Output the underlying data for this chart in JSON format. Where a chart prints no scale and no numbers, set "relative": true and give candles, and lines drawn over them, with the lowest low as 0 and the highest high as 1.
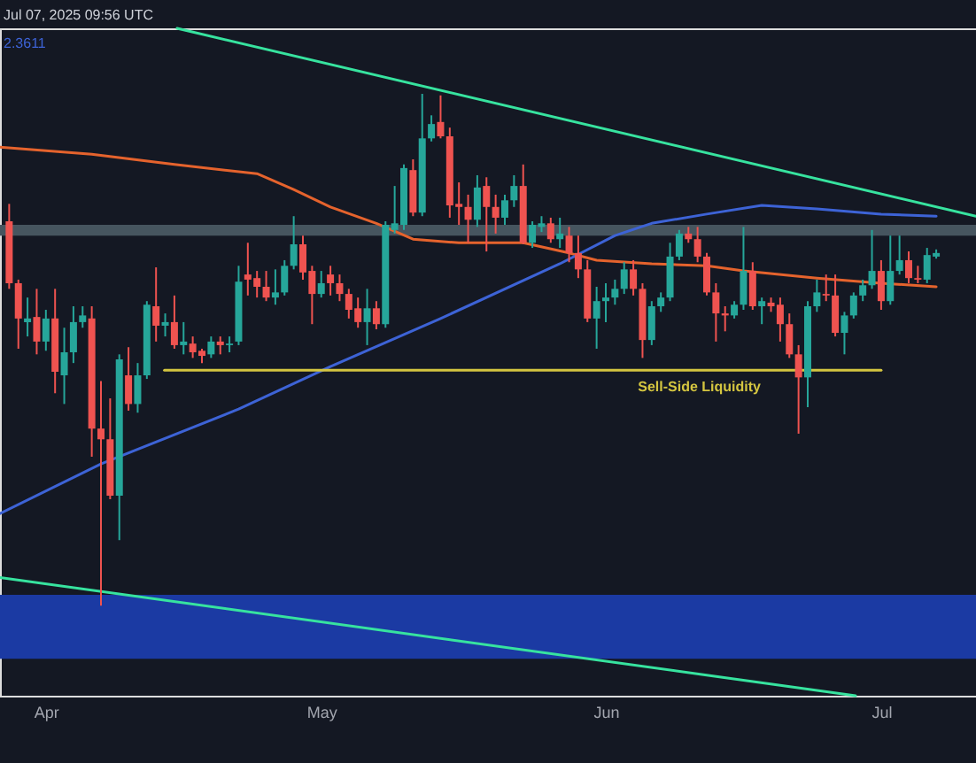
{
  "chart_data": {
    "type": "candlestick",
    "relative": true,
    "legend": "top left",
    "annotations": [
      "Jul 07, 2025 09:56 UTC",
      {
        "text": "Sell-Side Liquidity",
        "x": "2025-06-04T12:00",
        "y": 0.46
      }
    ],
    "xlim": [
      "2025-03-27",
      "2025-07-11T08:00"
    ],
    "xticks": [
      {
        "value": "2025-04-01",
        "label": "Apr"
      },
      {
        "value": "2025-05-01",
        "label": "May"
      },
      {
        "value": "2025-06-01",
        "label": "Jun"
      },
      {
        "value": "2025-07-01",
        "label": "Jul"
      }
    ],
    "bands": [
      {
        "axis": "y",
        "from": 0.723,
        "to": 0.744,
        "color": "#46555f"
      },
      {
        "axis": "y",
        "from": -0.104,
        "to": 0.021,
        "color": "#1b3aa3"
      }
    ],
    "x": [
      "2025-03-28",
      "2025-03-29",
      "2025-03-30",
      "2025-03-31",
      "2025-04-01",
      "2025-04-02",
      "2025-04-03",
      "2025-04-04",
      "2025-04-05",
      "2025-04-06",
      "2025-04-07",
      "2025-04-08",
      "2025-04-09",
      "2025-04-10",
      "2025-04-11",
      "2025-04-12",
      "2025-04-13",
      "2025-04-14",
      "2025-04-15",
      "2025-04-16",
      "2025-04-17",
      "2025-04-18",
      "2025-04-19",
      "2025-04-20",
      "2025-04-21",
      "2025-04-22",
      "2025-04-23",
      "2025-04-24",
      "2025-04-25",
      "2025-04-26",
      "2025-04-27",
      "2025-04-28",
      "2025-04-29",
      "2025-04-30",
      "2025-05-01",
      "2025-05-02",
      "2025-05-03",
      "2025-05-04",
      "2025-05-05",
      "2025-05-06",
      "2025-05-07",
      "2025-05-08",
      "2025-05-09",
      "2025-05-10",
      "2025-05-11",
      "2025-05-12",
      "2025-05-13",
      "2025-05-14",
      "2025-05-15",
      "2025-05-16",
      "2025-05-17",
      "2025-05-18",
      "2025-05-19",
      "2025-05-20",
      "2025-05-21",
      "2025-05-22",
      "2025-05-23",
      "2025-05-24",
      "2025-05-25",
      "2025-05-26",
      "2025-05-27",
      "2025-05-28",
      "2025-05-29",
      "2025-05-30",
      "2025-05-31",
      "2025-06-01",
      "2025-06-02",
      "2025-06-03",
      "2025-06-04",
      "2025-06-05",
      "2025-06-06",
      "2025-06-07",
      "2025-06-08",
      "2025-06-09",
      "2025-06-10",
      "2025-06-11",
      "2025-06-12",
      "2025-06-13",
      "2025-06-14",
      "2025-06-15",
      "2025-06-16",
      "2025-06-17",
      "2025-06-18",
      "2025-06-19",
      "2025-06-20",
      "2025-06-21",
      "2025-06-22",
      "2025-06-23",
      "2025-06-24",
      "2025-06-25",
      "2025-06-26",
      "2025-06-27",
      "2025-06-28",
      "2025-06-29",
      "2025-06-30",
      "2025-07-01",
      "2025-07-02",
      "2025-07-03",
      "2025-07-04",
      "2025-07-05",
      "2025-07-06",
      "2025-07-07"
    ],
    "ohlc": [
      [
        0.751,
        0.785,
        0.619,
        0.63
      ],
      [
        0.63,
        0.637,
        0.502,
        0.561
      ],
      [
        0.554,
        0.602,
        0.526,
        0.561
      ],
      [
        0.564,
        0.619,
        0.491,
        0.516
      ],
      [
        0.516,
        0.578,
        0.498,
        0.561
      ],
      [
        0.561,
        0.619,
        0.415,
        0.457
      ],
      [
        0.45,
        0.543,
        0.394,
        0.495
      ],
      [
        0.495,
        0.585,
        0.474,
        0.554
      ],
      [
        0.554,
        0.585,
        0.543,
        0.567
      ],
      [
        0.561,
        0.585,
        0.291,
        0.346
      ],
      [
        0.346,
        0.439,
        0,
        0.325
      ],
      [
        0.325,
        0.405,
        0.208,
        0.215
      ],
      [
        0.215,
        0.491,
        0.128,
        0.481
      ],
      [
        0.45,
        0.505,
        0.381,
        0.394
      ],
      [
        0.394,
        0.474,
        0.377,
        0.45
      ],
      [
        0.45,
        0.595,
        0.443,
        0.588
      ],
      [
        0.585,
        0.661,
        0.516,
        0.547
      ],
      [
        0.547,
        0.571,
        0.526,
        0.554
      ],
      [
        0.554,
        0.606,
        0.502,
        0.509
      ],
      [
        0.509,
        0.554,
        0.491,
        0.516
      ],
      [
        0.512,
        0.526,
        0.484,
        0.495
      ],
      [
        0.498,
        0.502,
        0.474,
        0.488
      ],
      [
        0.491,
        0.526,
        0.484,
        0.516
      ],
      [
        0.516,
        0.526,
        0.491,
        0.509
      ],
      [
        0.509,
        0.526,
        0.495,
        0.512
      ],
      [
        0.516,
        0.664,
        0.509,
        0.633
      ],
      [
        0.647,
        0.709,
        0.606,
        0.637
      ],
      [
        0.64,
        0.654,
        0.602,
        0.623
      ],
      [
        0.623,
        0.654,
        0.595,
        0.602
      ],
      [
        0.602,
        0.657,
        0.588,
        0.612
      ],
      [
        0.612,
        0.675,
        0.606,
        0.664
      ],
      [
        0.664,
        0.761,
        0.657,
        0.706
      ],
      [
        0.706,
        0.723,
        0.637,
        0.651
      ],
      [
        0.654,
        0.664,
        0.55,
        0.609
      ],
      [
        0.609,
        0.654,
        0.602,
        0.63
      ],
      [
        0.647,
        0.664,
        0.606,
        0.63
      ],
      [
        0.63,
        0.647,
        0.595,
        0.609
      ],
      [
        0.609,
        0.619,
        0.561,
        0.578
      ],
      [
        0.581,
        0.602,
        0.543,
        0.554
      ],
      [
        0.554,
        0.619,
        0.509,
        0.581
      ],
      [
        0.581,
        0.595,
        0.54,
        0.55
      ],
      [
        0.55,
        0.751,
        0.543,
        0.744
      ],
      [
        0.734,
        0.82,
        0.727,
        0.747
      ],
      [
        0.744,
        0.862,
        0.734,
        0.855
      ],
      [
        0.851,
        0.872,
        0.761,
        0.768
      ],
      [
        0.768,
        1,
        0.761,
        0.913
      ],
      [
        0.913,
        0.958,
        0.907,
        0.941
      ],
      [
        0.945,
        0.997,
        0.913,
        0.917
      ],
      [
        0.917,
        0.934,
        0.758,
        0.782
      ],
      [
        0.785,
        0.827,
        0.744,
        0.779
      ],
      [
        0.779,
        0.803,
        0.709,
        0.754
      ],
      [
        0.754,
        0.841,
        0.74,
        0.817
      ],
      [
        0.82,
        0.837,
        0.692,
        0.779
      ],
      [
        0.779,
        0.803,
        0.727,
        0.758
      ],
      [
        0.758,
        0.803,
        0.744,
        0.792
      ],
      [
        0.792,
        0.841,
        0.779,
        0.82
      ],
      [
        0.82,
        0.862,
        0.706,
        0.709
      ],
      [
        0.709,
        0.751,
        0.699,
        0.744
      ],
      [
        0.74,
        0.761,
        0.73,
        0.747
      ],
      [
        0.747,
        0.758,
        0.709,
        0.716
      ],
      [
        0.716,
        0.758,
        0.699,
        0.727
      ],
      [
        0.723,
        0.74,
        0.671,
        0.689
      ],
      [
        0.689,
        0.723,
        0.64,
        0.657
      ],
      [
        0.657,
        0.675,
        0.554,
        0.561
      ],
      [
        0.561,
        0.623,
        0.502,
        0.595
      ],
      [
        0.595,
        0.63,
        0.554,
        0.602
      ],
      [
        0.602,
        0.637,
        0.588,
        0.619
      ],
      [
        0.619,
        0.671,
        0.609,
        0.657
      ],
      [
        0.657,
        0.675,
        0.606,
        0.619
      ],
      [
        0.619,
        0.63,
        0.484,
        0.519
      ],
      [
        0.519,
        0.595,
        0.509,
        0.585
      ],
      [
        0.585,
        0.612,
        0.574,
        0.602
      ],
      [
        0.602,
        0.709,
        0.595,
        0.682
      ],
      [
        0.682,
        0.734,
        0.675,
        0.727
      ],
      [
        0.727,
        0.74,
        0.709,
        0.716
      ],
      [
        0.716,
        0.74,
        0.671,
        0.682
      ],
      [
        0.682,
        0.689,
        0.606,
        0.612
      ],
      [
        0.612,
        0.63,
        0.516,
        0.571
      ],
      [
        0.571,
        0.585,
        0.536,
        0.567
      ],
      [
        0.567,
        0.595,
        0.561,
        0.588
      ],
      [
        0.588,
        0.74,
        0.578,
        0.654
      ],
      [
        0.654,
        0.671,
        0.578,
        0.585
      ],
      [
        0.585,
        0.602,
        0.55,
        0.595
      ],
      [
        0.592,
        0.602,
        0.574,
        0.585
      ],
      [
        0.588,
        0.602,
        0.516,
        0.55
      ],
      [
        0.55,
        0.571,
        0.484,
        0.491
      ],
      [
        0.491,
        0.509,
        0.336,
        0.446
      ],
      [
        0.446,
        0.595,
        0.388,
        0.585
      ],
      [
        0.585,
        0.637,
        0.574,
        0.612
      ],
      [
        0.609,
        0.647,
        0.595,
        0.606
      ],
      [
        0.606,
        0.647,
        0.526,
        0.533
      ],
      [
        0.533,
        0.574,
        0.491,
        0.567
      ],
      [
        0.567,
        0.612,
        0.561,
        0.606
      ],
      [
        0.606,
        0.637,
        0.595,
        0.626
      ],
      [
        0.626,
        0.734,
        0.619,
        0.654
      ],
      [
        0.654,
        0.675,
        0.578,
        0.595
      ],
      [
        0.595,
        0.723,
        0.588,
        0.654
      ],
      [
        0.654,
        0.723,
        0.647,
        0.675
      ],
      [
        0.675,
        0.692,
        0.63,
        0.64
      ],
      [
        0.64,
        0.664,
        0.63,
        0.637
      ],
      [
        0.637,
        0.699,
        0.63,
        0.685
      ],
      [
        0.682,
        0.696,
        0.678,
        0.689
      ]
    ],
    "colors": [
      "#ef5350",
      "#ef5350",
      "#26a69a",
      "#ef5350",
      "#26a69a",
      "#ef5350",
      "#26a69a",
      "#26a69a",
      "#26a69a",
      "#ef5350",
      "#ef5350",
      "#ef5350",
      "#26a69a",
      "#ef5350",
      "#26a69a",
      "#26a69a",
      "#ef5350",
      "#26a69a",
      "#ef5350",
      "#26a69a",
      "#ef5350",
      "#ef5350",
      "#26a69a",
      "#ef5350",
      "#26a69a",
      "#26a69a",
      "#ef5350",
      "#ef5350",
      "#ef5350",
      "#26a69a",
      "#26a69a",
      "#26a69a",
      "#ef5350",
      "#ef5350",
      "#26a69a",
      "#ef5350",
      "#ef5350",
      "#ef5350",
      "#ef5350",
      "#26a69a",
      "#ef5350",
      "#26a69a",
      "#26a69a",
      "#26a69a",
      "#ef5350",
      "#26a69a",
      "#26a69a",
      "#ef5350",
      "#ef5350",
      "#ef5350",
      "#ef5350",
      "#26a69a",
      "#ef5350",
      "#ef5350",
      "#26a69a",
      "#26a69a",
      "#ef5350",
      "#26a69a",
      "#26a69a",
      "#ef5350",
      "#26a69a",
      "#ef5350",
      "#ef5350",
      "#ef5350",
      "#26a69a",
      "#26a69a",
      "#26a69a",
      "#26a69a",
      "#ef5350",
      "#ef5350",
      "#26a69a",
      "#26a69a",
      "#26a69a",
      "#26a69a",
      "#ef5350",
      "#ef5350",
      "#ef5350",
      "#ef5350",
      "#ef5350",
      "#26a69a",
      "#26a69a",
      "#ef5350",
      "#26a69a",
      "#ef5350",
      "#ef5350",
      "#ef5350",
      "#ef5350",
      "#26a69a",
      "#26a69a",
      "#ef5350",
      "#ef5350",
      "#26a69a",
      "#26a69a",
      "#26a69a",
      "#26a69a",
      "#ef5350",
      "#26a69a",
      "#26a69a",
      "#ef5350",
      "#ef5350",
      "#26a69a",
      "#26a69a"
    ],
    "series": [
      {
        "type": "line",
        "color": "#e5632d",
        "x": [
          "2025-03-27",
          "2025-04-06",
          "2025-04-15",
          "2025-04-24",
          "2025-04-28",
          "2025-05-02",
          "2025-05-07",
          "2025-05-11",
          "2025-05-16",
          "2025-05-23",
          "2025-05-28",
          "2025-05-31",
          "2025-06-06",
          "2025-06-12",
          "2025-06-16",
          "2025-06-24",
          "2025-07-01",
          "2025-07-07"
        ],
        "values": [
          0.896,
          0.882,
          0.862,
          0.844,
          0.813,
          0.779,
          0.747,
          0.716,
          0.709,
          0.709,
          0.689,
          0.675,
          0.668,
          0.664,
          0.654,
          0.64,
          0.63,
          0.623
        ]
      },
      {
        "type": "line",
        "name": "2.3611",
        "color": "#3d63d6",
        "x": [
          "2025-03-27",
          "2025-04-07",
          "2025-04-22",
          "2025-05-02",
          "2025-05-14",
          "2025-05-27",
          "2025-06-02",
          "2025-06-06",
          "2025-06-12",
          "2025-06-18",
          "2025-06-24",
          "2025-07-01",
          "2025-07-07"
        ],
        "values": [
          0.18,
          0.277,
          0.384,
          0.467,
          0.561,
          0.668,
          0.723,
          0.747,
          0.765,
          0.782,
          0.775,
          0.765,
          0.761
        ]
      },
      {
        "type": "line",
        "color": "#37e39f",
        "x": [
          "2025-04-15T07:00",
          "2025-07-11T08:00"
        ],
        "values": [
          1.128,
          0.761
        ]
      },
      {
        "type": "line",
        "color": "#37e39f",
        "x": [
          "2025-03-27",
          "2025-06-28T05:00"
        ],
        "values": [
          0.055,
          -0.176
        ]
      },
      {
        "type": "line",
        "color": "#d4c540",
        "x": [
          "2025-04-13T22:00",
          "2025-07-01"
        ],
        "values": [
          0.46,
          0.46
        ]
      }
    ]
  }
}
